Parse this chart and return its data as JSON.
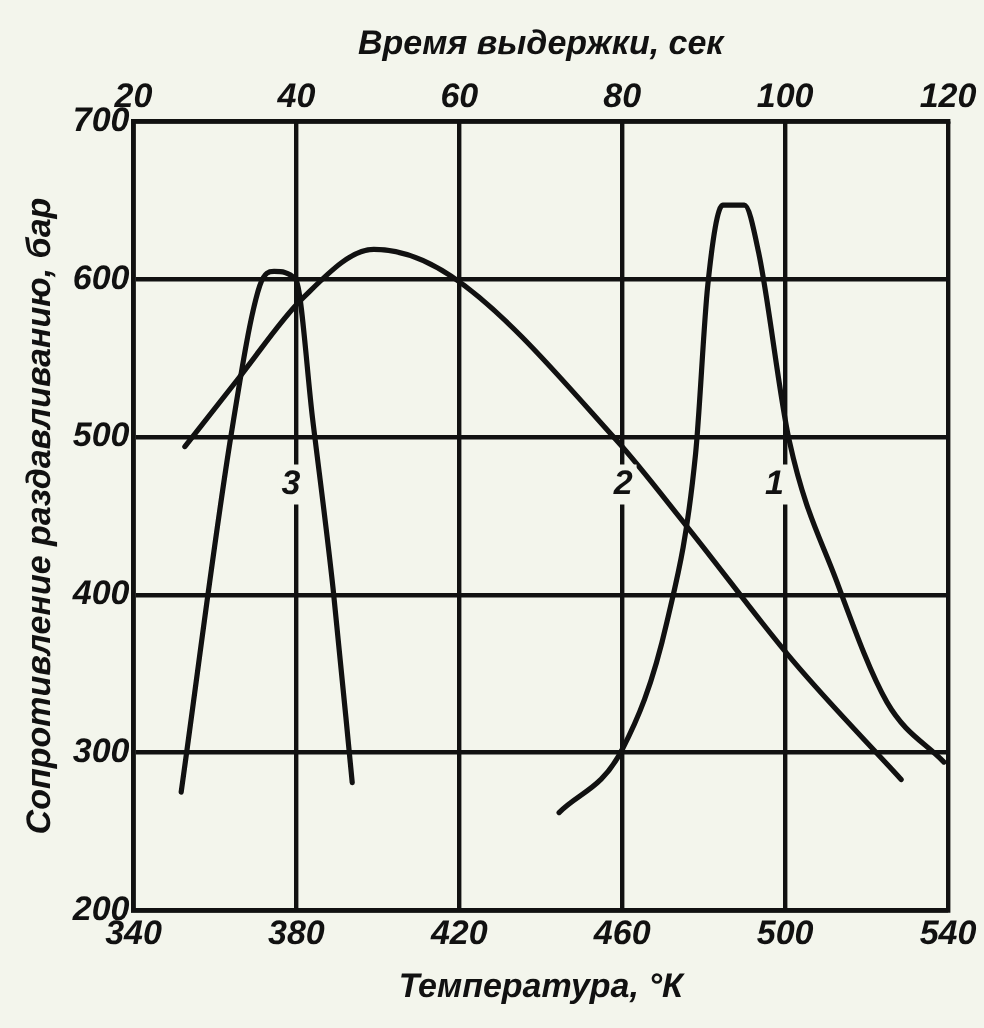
{
  "chart_data": {
    "type": "line",
    "xlabel": "Температура, °К",
    "ylabel": "Сопротивление раздавливанию, бар",
    "x2label": "Время выдержки, сек",
    "xlim": [
      340,
      540
    ],
    "xticks": [
      340,
      380,
      420,
      460,
      500,
      540
    ],
    "x2lim": [
      20,
      120
    ],
    "x2ticks": [
      20,
      40,
      60,
      80,
      100,
      120
    ],
    "ylim": [
      200,
      700
    ],
    "yticks": [
      200,
      300,
      400,
      500,
      600,
      700
    ],
    "grid": true,
    "legend": false,
    "marker": "none",
    "line_style": "solid",
    "series": [
      {
        "name": "1",
        "color": "#111111",
        "x": [
          444.5,
          460,
          471,
          478,
          481,
          484.7,
          490,
          493.5,
          501,
          512.6,
          525,
          539
        ],
        "values": [
          262,
          302,
          383,
          489,
          596,
          647,
          647,
          617,
          498,
          409,
          332,
          294
        ]
      },
      {
        "name": "2",
        "color": "#111111",
        "x": [
          352.6,
          365.7,
          381.5,
          399,
          418,
          458.6,
          476,
          502,
          528.5
        ],
        "values": [
          494,
          537,
          588,
          619,
          602,
          498,
          443,
          358,
          283
        ]
      },
      {
        "name": "3",
        "color": "#111111",
        "x": [
          351.7,
          364,
          371,
          374.5,
          379.8,
          384,
          389,
          393.7
        ],
        "values": [
          275,
          502,
          596,
          605,
          600,
          511,
          404,
          281
        ]
      }
    ]
  }
}
